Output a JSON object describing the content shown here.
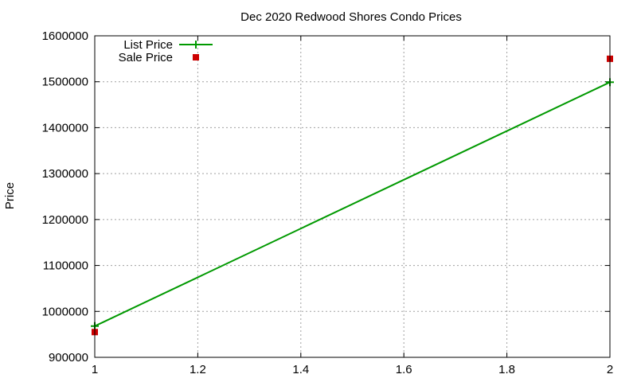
{
  "chart_data": {
    "type": "line",
    "title": "Dec 2020 Redwood Shores Condo Prices",
    "xlabel": "",
    "ylabel": "Price",
    "xlim": [
      1,
      2
    ],
    "ylim": [
      900000,
      1600000
    ],
    "x_ticks": [
      "1",
      "1.2",
      "1.4",
      "1.6",
      "1.8",
      "2"
    ],
    "y_ticks": [
      "900000",
      "1000000",
      "1100000",
      "1200000",
      "1300000",
      "1400000",
      "1500000",
      "1600000"
    ],
    "grid": true,
    "legend_position": "top-left",
    "series": [
      {
        "name": "List Price",
        "style": "linespoints",
        "marker": "plus",
        "color": "#009900",
        "points": [
          [
            1,
            968000
          ],
          [
            2,
            1499000
          ]
        ]
      },
      {
        "name": "Sale Price",
        "style": "points",
        "marker": "square",
        "color": "#cc0000",
        "points": [
          [
            1,
            955000
          ],
          [
            2,
            1550000
          ]
        ]
      }
    ]
  }
}
